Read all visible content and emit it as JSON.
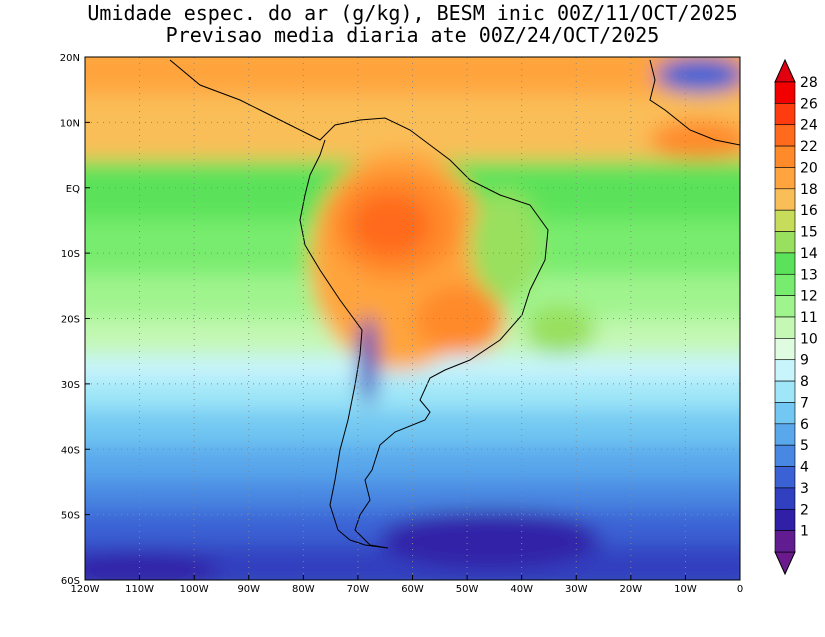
{
  "title": {
    "line1": "Umidade espec. do ar (g/kg), BESM inic 00Z/11/OCT/2025",
    "line2": "Previsao media diaria ate 00Z/24/OCT/2025"
  },
  "map": {
    "lon_range": [
      -120,
      0
    ],
    "lat_range": [
      -60,
      20
    ],
    "grid": true,
    "lat_labels": [
      "20N",
      "10N",
      "EQ",
      "10S",
      "20S",
      "30S",
      "40S",
      "50S",
      "60S"
    ],
    "lon_labels": [
      "120W",
      "110W",
      "100W",
      "90W",
      "80W",
      "70W",
      "60W",
      "50W",
      "40W",
      "30W",
      "20W",
      "10W",
      "0"
    ]
  },
  "colorbar": {
    "levels": [
      "28",
      "26",
      "24",
      "22",
      "20",
      "18",
      "16",
      "15",
      "14",
      "13",
      "12",
      "11",
      "10",
      "9",
      "8",
      "7",
      "6",
      "5",
      "4",
      "3",
      "2",
      "1"
    ],
    "colors": [
      "#f20000",
      "#ff3c10",
      "#ff6a1c",
      "#ff8a2a",
      "#ffa43e",
      "#fabe58",
      "#c6dc5a",
      "#99e05e",
      "#5ce25a",
      "#78ec6e",
      "#a0f48e",
      "#c4f8b4",
      "#e0fce0",
      "#c8f4fc",
      "#9ee6f8",
      "#72c8f2",
      "#5aa8ec",
      "#4888e2",
      "#3a62d4",
      "#3040c0",
      "#3020a8",
      "#601c90"
    ],
    "top_arrow_color": "#e00010",
    "bottom_arrow_color": "#6a1a8c"
  }
}
